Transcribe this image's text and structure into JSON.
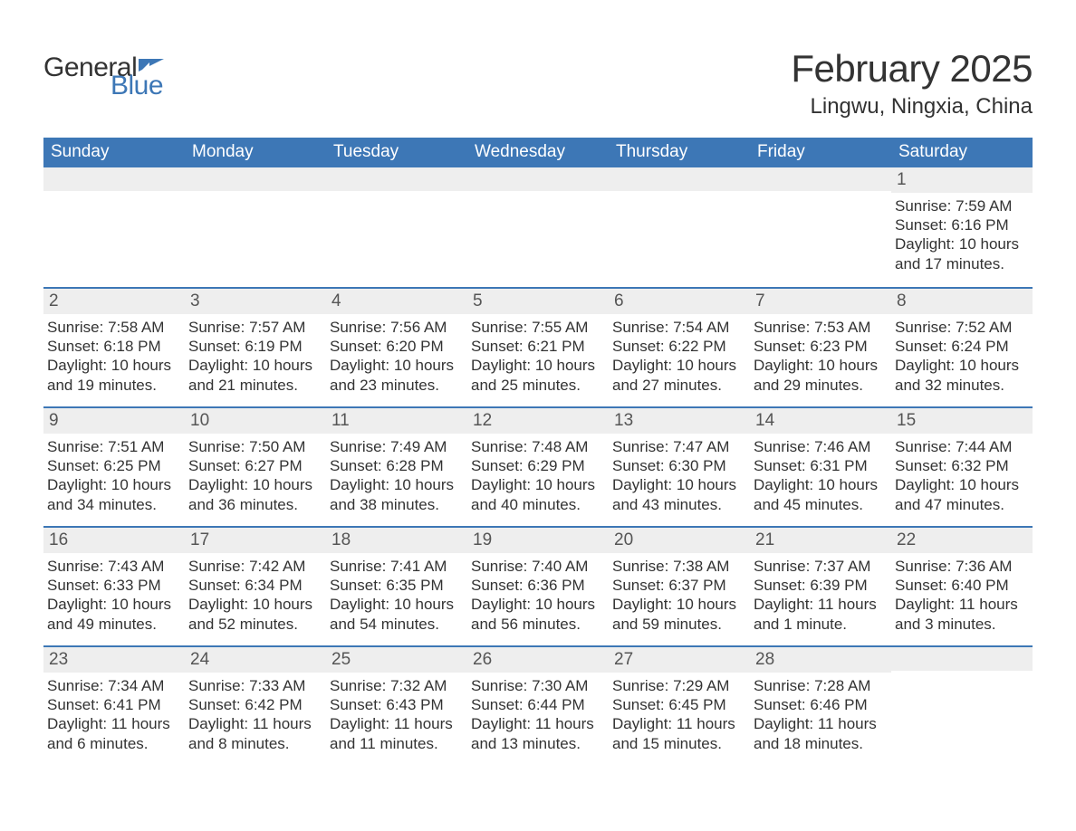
{
  "brand": {
    "word1": "General",
    "word2": "Blue"
  },
  "title": "February 2025",
  "location": "Lingwu, Ningxia, China",
  "colors": {
    "header_bg": "#3d77b6",
    "header_text": "#ffffff",
    "band_bg": "#eeeeee",
    "rule": "#3d77b6",
    "body_text": "#333333",
    "logo_blue": "#3d77b6"
  },
  "dow": [
    "Sunday",
    "Monday",
    "Tuesday",
    "Wednesday",
    "Thursday",
    "Friday",
    "Saturday"
  ],
  "labels": {
    "sunrise": "Sunrise: ",
    "sunset": "Sunset: ",
    "daylight": "Daylight: "
  },
  "weeks": [
    [
      null,
      null,
      null,
      null,
      null,
      null,
      {
        "n": "1",
        "sr": "7:59 AM",
        "ss": "6:16 PM",
        "dl": "10 hours and 17 minutes."
      }
    ],
    [
      {
        "n": "2",
        "sr": "7:58 AM",
        "ss": "6:18 PM",
        "dl": "10 hours and 19 minutes."
      },
      {
        "n": "3",
        "sr": "7:57 AM",
        "ss": "6:19 PM",
        "dl": "10 hours and 21 minutes."
      },
      {
        "n": "4",
        "sr": "7:56 AM",
        "ss": "6:20 PM",
        "dl": "10 hours and 23 minutes."
      },
      {
        "n": "5",
        "sr": "7:55 AM",
        "ss": "6:21 PM",
        "dl": "10 hours and 25 minutes."
      },
      {
        "n": "6",
        "sr": "7:54 AM",
        "ss": "6:22 PM",
        "dl": "10 hours and 27 minutes."
      },
      {
        "n": "7",
        "sr": "7:53 AM",
        "ss": "6:23 PM",
        "dl": "10 hours and 29 minutes."
      },
      {
        "n": "8",
        "sr": "7:52 AM",
        "ss": "6:24 PM",
        "dl": "10 hours and 32 minutes."
      }
    ],
    [
      {
        "n": "9",
        "sr": "7:51 AM",
        "ss": "6:25 PM",
        "dl": "10 hours and 34 minutes."
      },
      {
        "n": "10",
        "sr": "7:50 AM",
        "ss": "6:27 PM",
        "dl": "10 hours and 36 minutes."
      },
      {
        "n": "11",
        "sr": "7:49 AM",
        "ss": "6:28 PM",
        "dl": "10 hours and 38 minutes."
      },
      {
        "n": "12",
        "sr": "7:48 AM",
        "ss": "6:29 PM",
        "dl": "10 hours and 40 minutes."
      },
      {
        "n": "13",
        "sr": "7:47 AM",
        "ss": "6:30 PM",
        "dl": "10 hours and 43 minutes."
      },
      {
        "n": "14",
        "sr": "7:46 AM",
        "ss": "6:31 PM",
        "dl": "10 hours and 45 minutes."
      },
      {
        "n": "15",
        "sr": "7:44 AM",
        "ss": "6:32 PM",
        "dl": "10 hours and 47 minutes."
      }
    ],
    [
      {
        "n": "16",
        "sr": "7:43 AM",
        "ss": "6:33 PM",
        "dl": "10 hours and 49 minutes."
      },
      {
        "n": "17",
        "sr": "7:42 AM",
        "ss": "6:34 PM",
        "dl": "10 hours and 52 minutes."
      },
      {
        "n": "18",
        "sr": "7:41 AM",
        "ss": "6:35 PM",
        "dl": "10 hours and 54 minutes."
      },
      {
        "n": "19",
        "sr": "7:40 AM",
        "ss": "6:36 PM",
        "dl": "10 hours and 56 minutes."
      },
      {
        "n": "20",
        "sr": "7:38 AM",
        "ss": "6:37 PM",
        "dl": "10 hours and 59 minutes."
      },
      {
        "n": "21",
        "sr": "7:37 AM",
        "ss": "6:39 PM",
        "dl": "11 hours and 1 minute."
      },
      {
        "n": "22",
        "sr": "7:36 AM",
        "ss": "6:40 PM",
        "dl": "11 hours and 3 minutes."
      }
    ],
    [
      {
        "n": "23",
        "sr": "7:34 AM",
        "ss": "6:41 PM",
        "dl": "11 hours and 6 minutes."
      },
      {
        "n": "24",
        "sr": "7:33 AM",
        "ss": "6:42 PM",
        "dl": "11 hours and 8 minutes."
      },
      {
        "n": "25",
        "sr": "7:32 AM",
        "ss": "6:43 PM",
        "dl": "11 hours and 11 minutes."
      },
      {
        "n": "26",
        "sr": "7:30 AM",
        "ss": "6:44 PM",
        "dl": "11 hours and 13 minutes."
      },
      {
        "n": "27",
        "sr": "7:29 AM",
        "ss": "6:45 PM",
        "dl": "11 hours and 15 minutes."
      },
      {
        "n": "28",
        "sr": "7:28 AM",
        "ss": "6:46 PM",
        "dl": "11 hours and 18 minutes."
      },
      null
    ]
  ]
}
